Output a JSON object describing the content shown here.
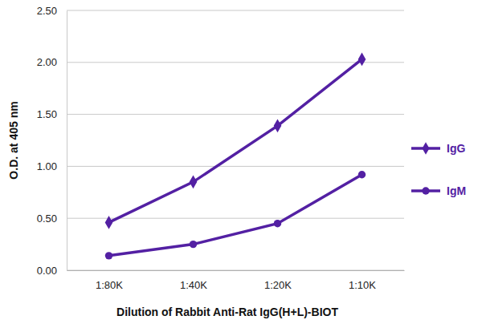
{
  "chart_data": {
    "type": "line",
    "x_label": "Dilution of Rabbit Anti-Rat IgG(H+L)-BIOT",
    "y_label": "O.D. at 405 nm",
    "categories": [
      "1:80K",
      "1:40K",
      "1:20K",
      "1:10K"
    ],
    "series": [
      {
        "name": "IgG",
        "color": "#5320a3",
        "marker": "diamond",
        "values": [
          0.46,
          0.85,
          1.39,
          2.03
        ]
      },
      {
        "name": "IgM",
        "color": "#5320a3",
        "marker": "circle",
        "values": [
          0.14,
          0.25,
          0.45,
          0.92
        ]
      }
    ],
    "ylim": [
      0,
      2.5
    ],
    "yticks": [
      {
        "value": 0,
        "label": "0.00"
      },
      {
        "value": 0.5,
        "label": "0.50"
      },
      {
        "value": 1,
        "label": "1.00"
      },
      {
        "value": 1.5,
        "label": "1.50"
      },
      {
        "value": 2,
        "label": "2.00"
      },
      {
        "value": 2.5,
        "label": "2.50"
      }
    ],
    "grid": true,
    "legend": "right"
  }
}
